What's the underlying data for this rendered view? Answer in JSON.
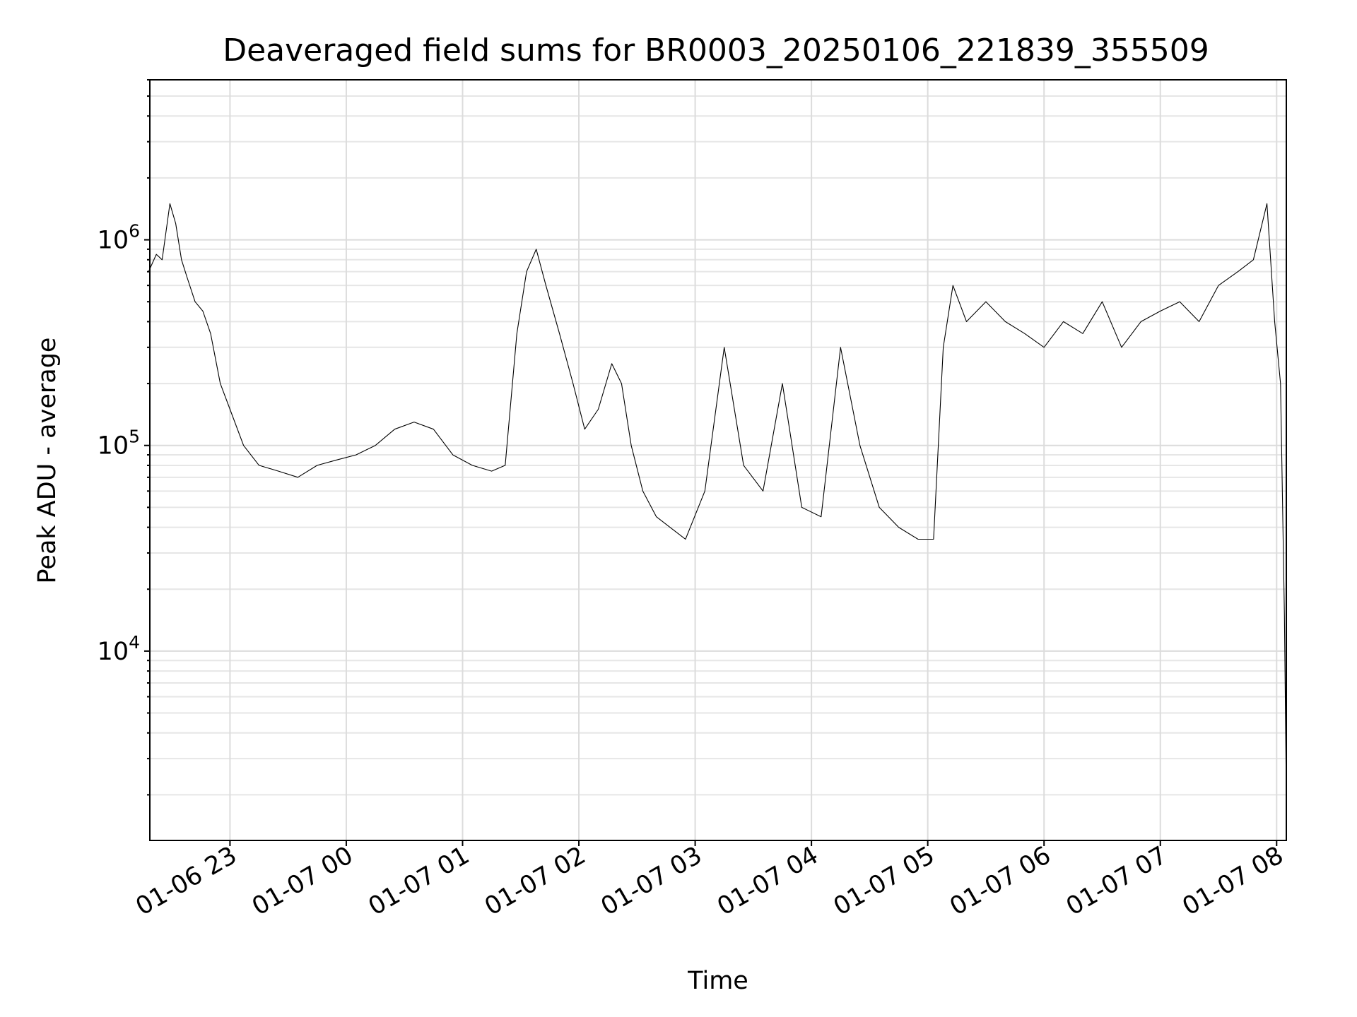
{
  "chart_data": {
    "type": "line",
    "title": "Deaveraged field sums for BR0003_20250106_221839_355509",
    "xlabel": "Time",
    "ylabel": "Peak ADU - average",
    "y_scale": "log",
    "ylim": [
      1200,
      6000000
    ],
    "xlim": [
      "2025-01-06 22:18:39",
      "2025-01-07 08:05:00"
    ],
    "grid": "major and minor",
    "x_ticks": [
      {
        "label": "01-06 23",
        "value": "2025-01-06 23:00"
      },
      {
        "label": "01-07 00",
        "value": "2025-01-07 00:00"
      },
      {
        "label": "01-07 01",
        "value": "2025-01-07 01:00"
      },
      {
        "label": "01-07 02",
        "value": "2025-01-07 02:00"
      },
      {
        "label": "01-07 03",
        "value": "2025-01-07 03:00"
      },
      {
        "label": "01-07 04",
        "value": "2025-01-07 04:00"
      },
      {
        "label": "01-07 05",
        "value": "2025-01-07 05:00"
      },
      {
        "label": "01-07 06",
        "value": "2025-01-07 06:00"
      },
      {
        "label": "01-07 07",
        "value": "2025-01-07 07:00"
      },
      {
        "label": "01-07 08",
        "value": "2025-01-07 08:00"
      }
    ],
    "y_ticks": [
      {
        "base": "10",
        "exp": "4",
        "value": 10000
      },
      {
        "base": "10",
        "exp": "5",
        "value": 100000
      },
      {
        "base": "10",
        "exp": "6",
        "value": 1000000
      }
    ],
    "series": [
      {
        "color": "#000000",
        "x": [
          "2025-01-06 22:18",
          "2025-01-06 22:22",
          "2025-01-06 22:25",
          "2025-01-06 22:29",
          "2025-01-06 22:32",
          "2025-01-06 22:35",
          "2025-01-06 22:38",
          "2025-01-06 22:42",
          "2025-01-06 22:46",
          "2025-01-06 22:50",
          "2025-01-06 22:55",
          "2025-01-06 23:00",
          "2025-01-06 23:07",
          "2025-01-06 23:15",
          "2025-01-06 23:25",
          "2025-01-06 23:35",
          "2025-01-06 23:45",
          "2025-01-06 23:55",
          "2025-01-07 00:05",
          "2025-01-07 00:15",
          "2025-01-07 00:25",
          "2025-01-07 00:35",
          "2025-01-07 00:45",
          "2025-01-07 00:55",
          "2025-01-07 01:05",
          "2025-01-07 01:15",
          "2025-01-07 01:22",
          "2025-01-07 01:28",
          "2025-01-07 01:33",
          "2025-01-07 01:38",
          "2025-01-07 01:43",
          "2025-01-07 01:50",
          "2025-01-07 01:57",
          "2025-01-07 02:03",
          "2025-01-07 02:10",
          "2025-01-07 02:17",
          "2025-01-07 02:22",
          "2025-01-07 02:27",
          "2025-01-07 02:33",
          "2025-01-07 02:40",
          "2025-01-07 02:47",
          "2025-01-07 02:55",
          "2025-01-07 03:05",
          "2025-01-07 03:15",
          "2025-01-07 03:25",
          "2025-01-07 03:35",
          "2025-01-07 03:45",
          "2025-01-07 03:55",
          "2025-01-07 04:05",
          "2025-01-07 04:15",
          "2025-01-07 04:25",
          "2025-01-07 04:35",
          "2025-01-07 04:45",
          "2025-01-07 04:55",
          "2025-01-07 05:03",
          "2025-01-07 05:08",
          "2025-01-07 05:13",
          "2025-01-07 05:20",
          "2025-01-07 05:30",
          "2025-01-07 05:40",
          "2025-01-07 05:50",
          "2025-01-07 06:00",
          "2025-01-07 06:10",
          "2025-01-07 06:20",
          "2025-01-07 06:30",
          "2025-01-07 06:40",
          "2025-01-07 06:50",
          "2025-01-07 07:00",
          "2025-01-07 07:10",
          "2025-01-07 07:20",
          "2025-01-07 07:30",
          "2025-01-07 07:40",
          "2025-01-07 07:48",
          "2025-01-07 07:55",
          "2025-01-07 07:59",
          "2025-01-07 08:02",
          "2025-01-07 08:04",
          "2025-01-07 08:05"
        ],
        "y": [
          700000,
          850000,
          800000,
          1500000,
          1200000,
          800000,
          650000,
          500000,
          450000,
          350000,
          200000,
          150000,
          100000,
          80000,
          75000,
          70000,
          80000,
          85000,
          90000,
          100000,
          120000,
          130000,
          120000,
          90000,
          80000,
          75000,
          80000,
          350000,
          700000,
          900000,
          600000,
          350000,
          200000,
          120000,
          150000,
          250000,
          200000,
          100000,
          60000,
          45000,
          40000,
          35000,
          60000,
          300000,
          80000,
          60000,
          200000,
          50000,
          45000,
          300000,
          100000,
          50000,
          40000,
          35000,
          35000,
          300000,
          600000,
          400000,
          500000,
          400000,
          350000,
          300000,
          400000,
          350000,
          500000,
          300000,
          400000,
          450000,
          500000,
          400000,
          600000,
          700000,
          800000,
          1500000,
          400000,
          200000,
          15000,
          2000
        ]
      }
    ]
  }
}
